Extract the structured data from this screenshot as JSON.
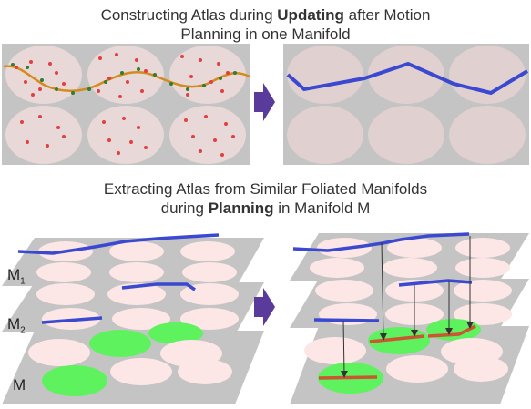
{
  "top_caption": {
    "line1_pre": "Constructing Atlas during ",
    "line1_bold": "Updating",
    "line1_post": " after Motion",
    "line2": "Planning in one Manifold"
  },
  "bottom_caption": {
    "line1": "Extracting Atlas from Similar Foliated Manifolds",
    "line2_pre": "during ",
    "line2_bold": "Planning",
    "line2_post": " in Manifold M"
  },
  "layer_labels": {
    "m1": "M",
    "m1_sub": "1",
    "m2": "M",
    "m2_sub": "2",
    "m": "M"
  },
  "colors": {
    "panel": "#c4c4c4",
    "chart_top": "#e8d8d8",
    "chart_pink": "#fde6e6",
    "chart_green": "#5ef25e",
    "path_blue": "#3a49d0",
    "path_orange": "#d68a1e",
    "path_red": "#cc5533",
    "arrow": "#5a3a9a",
    "dot_red": "#e04040",
    "dot_green": "#2e7d32"
  },
  "icons": [
    "right-arrow-icon",
    "right-arrow-icon"
  ]
}
